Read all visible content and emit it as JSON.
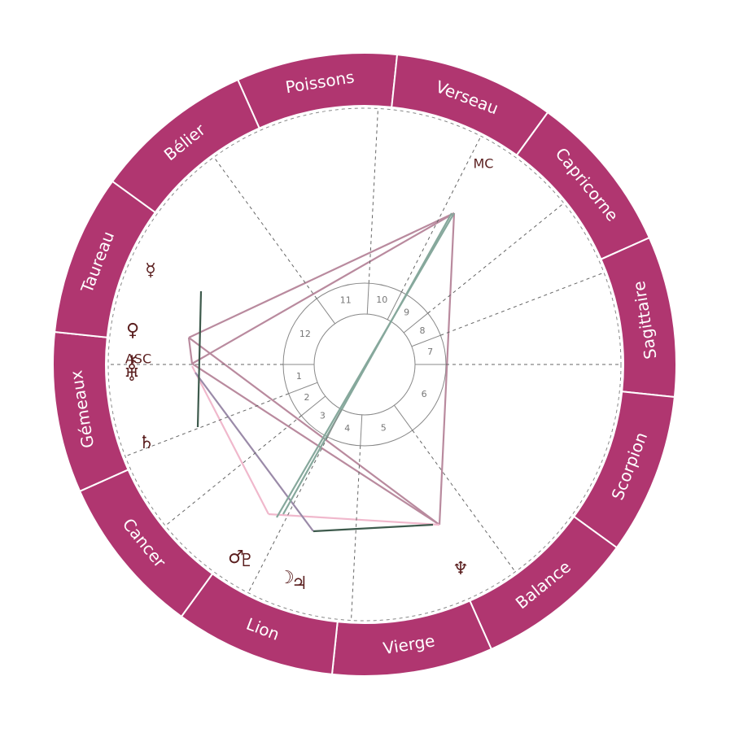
{
  "signs": [
    "Poissons",
    "Verseau",
    "Capricorne",
    "Sagittaire",
    "Scorpion",
    "Balance",
    "Vierge",
    "Lion",
    "Cancer",
    "Gémeaux",
    "Taureau",
    "Bélier"
  ],
  "houses": [
    "1",
    "2",
    "3",
    "4",
    "5",
    "6",
    "7",
    "8",
    "9",
    "10",
    "11",
    "12"
  ],
  "angles": {
    "asc": "ASC",
    "mc": "MC"
  },
  "planets": [
    "☿",
    "♀",
    "⚷",
    "♅",
    "♄",
    "♂",
    "♇",
    "☽",
    "♃",
    "♆"
  ]
}
